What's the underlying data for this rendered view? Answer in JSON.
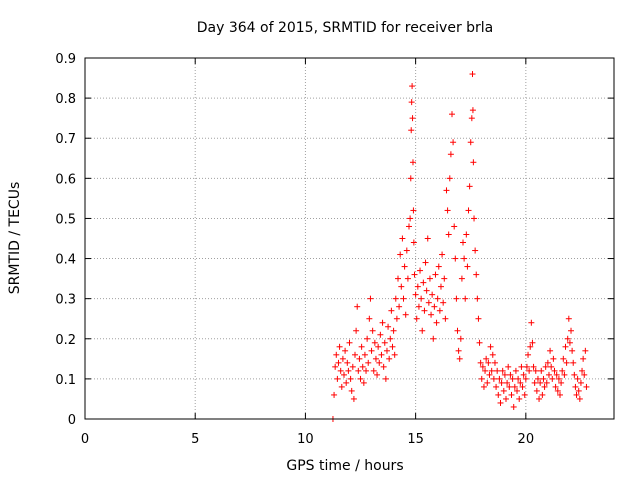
{
  "chart_data": {
    "type": "scatter",
    "title": "Day 364 of 2015, SRMTID for receiver brla",
    "xlabel": "GPS time / hours",
    "ylabel": "SRMTID / TECUs",
    "xlim": [
      0,
      24
    ],
    "ylim": [
      0,
      0.9
    ],
    "xticks": [
      0,
      5,
      10,
      15,
      20
    ],
    "xtick_labels": [
      "0",
      "5",
      "10",
      "15",
      "20"
    ],
    "yticks": [
      0,
      0.1,
      0.2,
      0.3,
      0.4,
      0.5,
      0.6,
      0.7,
      0.8,
      0.9
    ],
    "ytick_labels": [
      "0",
      "0.1",
      "0.2",
      "0.3",
      "0.4",
      "0.5",
      "0.6",
      "0.7",
      "0.8",
      "0.9"
    ],
    "grid": true,
    "marker": "+",
    "color": "#ff0000",
    "series": [
      {
        "name": "brla",
        "points": [
          [
            11.25,
            0.0
          ],
          [
            11.3,
            0.06
          ],
          [
            11.35,
            0.13
          ],
          [
            11.4,
            0.16
          ],
          [
            11.45,
            0.1
          ],
          [
            11.5,
            0.14
          ],
          [
            11.55,
            0.18
          ],
          [
            11.6,
            0.12
          ],
          [
            11.65,
            0.08
          ],
          [
            11.7,
            0.15
          ],
          [
            11.75,
            0.11
          ],
          [
            11.8,
            0.17
          ],
          [
            11.85,
            0.09
          ],
          [
            11.9,
            0.14
          ],
          [
            11.95,
            0.12
          ],
          [
            12.0,
            0.19
          ],
          [
            12.05,
            0.1
          ],
          [
            12.1,
            0.07
          ],
          [
            12.15,
            0.13
          ],
          [
            12.2,
            0.05
          ],
          [
            12.25,
            0.16
          ],
          [
            12.3,
            0.22
          ],
          [
            12.35,
            0.28
          ],
          [
            12.4,
            0.12
          ],
          [
            12.45,
            0.15
          ],
          [
            12.5,
            0.1
          ],
          [
            12.55,
            0.18
          ],
          [
            12.6,
            0.13
          ],
          [
            12.65,
            0.09
          ],
          [
            12.7,
            0.16
          ],
          [
            12.75,
            0.12
          ],
          [
            12.8,
            0.2
          ],
          [
            12.85,
            0.14
          ],
          [
            12.9,
            0.25
          ],
          [
            12.95,
            0.3
          ],
          [
            13.0,
            0.17
          ],
          [
            13.05,
            0.22
          ],
          [
            13.1,
            0.12
          ],
          [
            13.15,
            0.19
          ],
          [
            13.2,
            0.15
          ],
          [
            13.25,
            0.11
          ],
          [
            13.3,
            0.18
          ],
          [
            13.35,
            0.14
          ],
          [
            13.4,
            0.21
          ],
          [
            13.45,
            0.16
          ],
          [
            13.5,
            0.24
          ],
          [
            13.55,
            0.13
          ],
          [
            13.6,
            0.19
          ],
          [
            13.65,
            0.1
          ],
          [
            13.7,
            0.17
          ],
          [
            13.75,
            0.23
          ],
          [
            13.8,
            0.15
          ],
          [
            13.85,
            0.2
          ],
          [
            13.9,
            0.27
          ],
          [
            13.95,
            0.18
          ],
          [
            14.0,
            0.22
          ],
          [
            14.05,
            0.16
          ],
          [
            14.1,
            0.3
          ],
          [
            14.15,
            0.25
          ],
          [
            14.2,
            0.35
          ],
          [
            14.25,
            0.28
          ],
          [
            14.3,
            0.41
          ],
          [
            14.35,
            0.33
          ],
          [
            14.4,
            0.45
          ],
          [
            14.45,
            0.3
          ],
          [
            14.5,
            0.38
          ],
          [
            14.55,
            0.26
          ],
          [
            14.6,
            0.42
          ],
          [
            14.65,
            0.35
          ],
          [
            14.7,
            0.48
          ],
          [
            14.75,
            0.5
          ],
          [
            14.78,
            0.6
          ],
          [
            14.8,
            0.72
          ],
          [
            14.82,
            0.79
          ],
          [
            14.84,
            0.83
          ],
          [
            14.86,
            0.75
          ],
          [
            14.88,
            0.64
          ],
          [
            14.9,
            0.52
          ],
          [
            14.92,
            0.44
          ],
          [
            14.95,
            0.36
          ],
          [
            15.0,
            0.31
          ],
          [
            15.05,
            0.25
          ],
          [
            15.1,
            0.33
          ],
          [
            15.15,
            0.28
          ],
          [
            15.2,
            0.37
          ],
          [
            15.25,
            0.3
          ],
          [
            15.3,
            0.22
          ],
          [
            15.35,
            0.34
          ],
          [
            15.4,
            0.27
          ],
          [
            15.45,
            0.39
          ],
          [
            15.5,
            0.32
          ],
          [
            15.55,
            0.45
          ],
          [
            15.6,
            0.29
          ],
          [
            15.65,
            0.35
          ],
          [
            15.7,
            0.26
          ],
          [
            15.75,
            0.31
          ],
          [
            15.8,
            0.2
          ],
          [
            15.85,
            0.28
          ],
          [
            15.9,
            0.36
          ],
          [
            15.95,
            0.24
          ],
          [
            16.0,
            0.3
          ],
          [
            16.05,
            0.38
          ],
          [
            16.1,
            0.27
          ],
          [
            16.15,
            0.33
          ],
          [
            16.2,
            0.41
          ],
          [
            16.25,
            0.29
          ],
          [
            16.3,
            0.35
          ],
          [
            16.35,
            0.25
          ],
          [
            16.4,
            0.57
          ],
          [
            16.45,
            0.52
          ],
          [
            16.5,
            0.46
          ],
          [
            16.55,
            0.6
          ],
          [
            16.6,
            0.66
          ],
          [
            16.65,
            0.76
          ],
          [
            16.7,
            0.69
          ],
          [
            16.75,
            0.48
          ],
          [
            16.8,
            0.4
          ],
          [
            16.85,
            0.3
          ],
          [
            16.9,
            0.22
          ],
          [
            16.95,
            0.17
          ],
          [
            17.0,
            0.15
          ],
          [
            17.05,
            0.2
          ],
          [
            17.1,
            0.35
          ],
          [
            17.15,
            0.44
          ],
          [
            17.2,
            0.4
          ],
          [
            17.25,
            0.3
          ],
          [
            17.3,
            0.46
          ],
          [
            17.35,
            0.38
          ],
          [
            17.4,
            0.52
          ],
          [
            17.45,
            0.58
          ],
          [
            17.5,
            0.69
          ],
          [
            17.55,
            0.75
          ],
          [
            17.58,
            0.86
          ],
          [
            17.6,
            0.77
          ],
          [
            17.62,
            0.64
          ],
          [
            17.65,
            0.5
          ],
          [
            17.7,
            0.42
          ],
          [
            17.75,
            0.36
          ],
          [
            17.8,
            0.3
          ],
          [
            17.85,
            0.25
          ],
          [
            17.9,
            0.19
          ],
          [
            17.95,
            0.14
          ],
          [
            18.0,
            0.1
          ],
          [
            18.05,
            0.13
          ],
          [
            18.1,
            0.08
          ],
          [
            18.15,
            0.12
          ],
          [
            18.2,
            0.15
          ],
          [
            18.25,
            0.09
          ],
          [
            18.3,
            0.14
          ],
          [
            18.35,
            0.11
          ],
          [
            18.4,
            0.18
          ],
          [
            18.45,
            0.12
          ],
          [
            18.5,
            0.16
          ],
          [
            18.55,
            0.1
          ],
          [
            18.6,
            0.14
          ],
          [
            18.65,
            0.08
          ],
          [
            18.7,
            0.12
          ],
          [
            18.75,
            0.06
          ],
          [
            18.8,
            0.1
          ],
          [
            18.85,
            0.04
          ],
          [
            18.9,
            0.09
          ],
          [
            18.95,
            0.12
          ],
          [
            19.0,
            0.07
          ],
          [
            19.05,
            0.11
          ],
          [
            19.1,
            0.05
          ],
          [
            19.15,
            0.09
          ],
          [
            19.2,
            0.13
          ],
          [
            19.25,
            0.08
          ],
          [
            19.3,
            0.11
          ],
          [
            19.35,
            0.06
          ],
          [
            19.4,
            0.1
          ],
          [
            19.45,
            0.03
          ],
          [
            19.5,
            0.08
          ],
          [
            19.55,
            0.12
          ],
          [
            19.6,
            0.07
          ],
          [
            19.65,
            0.1
          ],
          [
            19.7,
            0.05
          ],
          [
            19.75,
            0.09
          ],
          [
            19.8,
            0.13
          ],
          [
            19.85,
            0.08
          ],
          [
            19.9,
            0.11
          ],
          [
            19.95,
            0.06
          ],
          [
            20.0,
            0.1
          ],
          [
            20.05,
            0.13
          ],
          [
            20.1,
            0.16
          ],
          [
            20.15,
            0.12
          ],
          [
            20.2,
            0.18
          ],
          [
            20.25,
            0.24
          ],
          [
            20.3,
            0.19
          ],
          [
            20.35,
            0.13
          ],
          [
            20.4,
            0.09
          ],
          [
            20.45,
            0.12
          ],
          [
            20.5,
            0.07
          ],
          [
            20.55,
            0.1
          ],
          [
            20.6,
            0.05
          ],
          [
            20.65,
            0.09
          ],
          [
            20.7,
            0.12
          ],
          [
            20.75,
            0.06
          ],
          [
            20.8,
            0.1
          ],
          [
            20.85,
            0.08
          ],
          [
            20.9,
            0.13
          ],
          [
            20.95,
            0.09
          ],
          [
            21.0,
            0.14
          ],
          [
            21.05,
            0.11
          ],
          [
            21.1,
            0.17
          ],
          [
            21.15,
            0.13
          ],
          [
            21.2,
            0.1
          ],
          [
            21.25,
            0.15
          ],
          [
            21.3,
            0.12
          ],
          [
            21.35,
            0.08
          ],
          [
            21.4,
            0.11
          ],
          [
            21.45,
            0.07
          ],
          [
            21.5,
            0.1
          ],
          [
            21.55,
            0.06
          ],
          [
            21.6,
            0.09
          ],
          [
            21.65,
            0.12
          ],
          [
            21.7,
            0.15
          ],
          [
            21.75,
            0.11
          ],
          [
            21.8,
            0.18
          ],
          [
            21.85,
            0.14
          ],
          [
            21.9,
            0.2
          ],
          [
            21.95,
            0.25
          ],
          [
            22.0,
            0.19
          ],
          [
            22.05,
            0.22
          ],
          [
            22.1,
            0.17
          ],
          [
            22.15,
            0.14
          ],
          [
            22.2,
            0.11
          ],
          [
            22.25,
            0.08
          ],
          [
            22.3,
            0.06
          ],
          [
            22.35,
            0.1
          ],
          [
            22.4,
            0.07
          ],
          [
            22.45,
            0.05
          ],
          [
            22.5,
            0.09
          ],
          [
            22.55,
            0.12
          ],
          [
            22.6,
            0.15
          ],
          [
            22.65,
            0.11
          ],
          [
            22.7,
            0.17
          ],
          [
            22.75,
            0.08
          ]
        ]
      }
    ]
  }
}
